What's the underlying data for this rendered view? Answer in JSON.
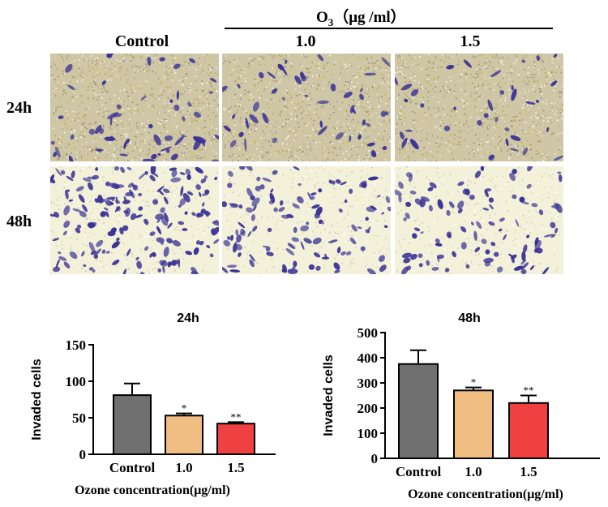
{
  "figure": {
    "o3_header": {
      "prefix": "O",
      "subscript": "3",
      "unit": "（μg /ml）"
    },
    "columns": [
      "Control",
      "1.0",
      "1.5"
    ],
    "rows": [
      "24h",
      "48h"
    ],
    "micrographs": [
      {
        "row": "24h",
        "column": "Control",
        "stain": "crystal-violet"
      },
      {
        "row": "24h",
        "column": "1.0",
        "stain": "crystal-violet"
      },
      {
        "row": "24h",
        "column": "1.5",
        "stain": "crystal-violet"
      },
      {
        "row": "48h",
        "column": "Control",
        "stain": "crystal-violet"
      },
      {
        "row": "48h",
        "column": "1.0",
        "stain": "crystal-violet"
      },
      {
        "row": "48h",
        "column": "1.5",
        "stain": "crystal-violet"
      }
    ]
  },
  "colors": {
    "control": "#707070",
    "dose_1_0": "#f0bd82",
    "dose_1_5": "#ef4141",
    "axis": "#000000",
    "stain": "#3a3396"
  },
  "chart_data": [
    {
      "type": "bar",
      "title": "24h",
      "ylabel": "Invaded cells",
      "xlabel": "Ozone concentration(μg/ml)",
      "categories": [
        "Control",
        "1.0",
        "1.5"
      ],
      "values": [
        81,
        53,
        42
      ],
      "errors": [
        16,
        3,
        2
      ],
      "significance": [
        "",
        "*",
        "**"
      ],
      "ylim": [
        0,
        150
      ],
      "yticks": [
        0,
        50,
        100,
        150
      ],
      "grid": false
    },
    {
      "type": "bar",
      "title": "48h",
      "ylabel": "Invaded cells",
      "xlabel": "Ozone concentration(μg/ml)",
      "categories": [
        "Control",
        "1.0",
        "1.5"
      ],
      "values": [
        375,
        270,
        220
      ],
      "errors": [
        55,
        12,
        30
      ],
      "significance": [
        "",
        "*",
        "**"
      ],
      "ylim": [
        0,
        500
      ],
      "yticks": [
        0,
        100,
        200,
        300,
        400,
        500
      ],
      "grid": false
    }
  ]
}
